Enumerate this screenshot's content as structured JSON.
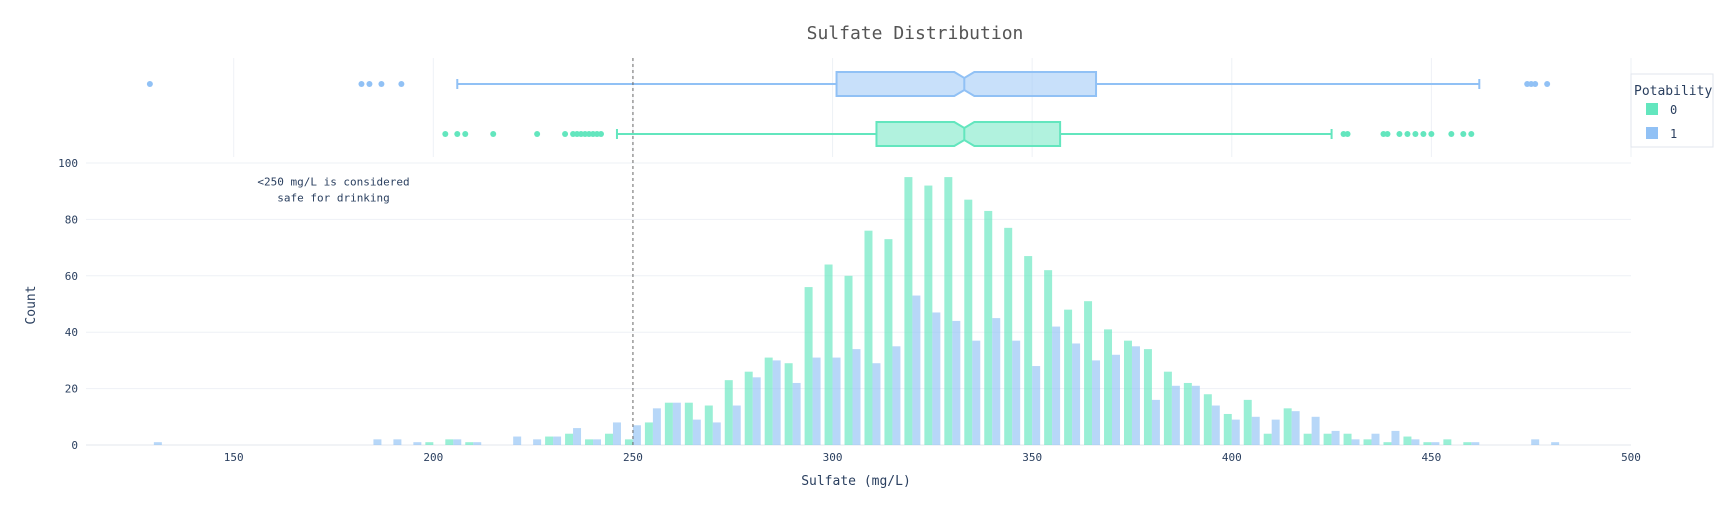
{
  "chart_data": {
    "type": "bar",
    "title": "Sulfate Distribution",
    "xlabel": "Sulfate (mg/L)",
    "ylabel": "Count",
    "xlim": [
      113,
      500
    ],
    "ylim": [
      0,
      100
    ],
    "x_ticks": [
      150,
      200,
      250,
      300,
      350,
      400,
      450,
      500
    ],
    "y_ticks": [
      0,
      20,
      40,
      60,
      80,
      100
    ],
    "grid": true,
    "legend_title": "Potability",
    "legend_position": "top-right",
    "bin_width": 5,
    "threshold_line": {
      "x": 250,
      "style": "dashed"
    },
    "annotation": {
      "lines": [
        "<250 mg/L is considered",
        "safe for drinking"
      ],
      "x": 175,
      "y": 92
    },
    "series": [
      {
        "name": "0",
        "color": "#63e6be",
        "bin_centers": [
          200,
          205,
          210,
          215,
          220,
          225,
          230,
          235,
          240,
          245,
          250,
          255,
          260,
          265,
          270,
          275,
          280,
          285,
          290,
          295,
          300,
          305,
          310,
          315,
          320,
          325,
          330,
          335,
          340,
          345,
          350,
          355,
          360,
          365,
          370,
          375,
          380,
          385,
          390,
          395,
          400,
          405,
          410,
          415,
          420,
          425,
          430,
          435,
          440,
          445,
          450,
          455,
          460,
          465,
          470,
          475,
          480
        ],
        "values": [
          1,
          2,
          1,
          0,
          0,
          0,
          3,
          4,
          2,
          4,
          2,
          8,
          15,
          15,
          14,
          23,
          26,
          31,
          29,
          56,
          64,
          60,
          76,
          73,
          95,
          92,
          95,
          87,
          83,
          77,
          67,
          62,
          48,
          51,
          41,
          37,
          34,
          26,
          22,
          18,
          11,
          16,
          4,
          13,
          4,
          4,
          4,
          2,
          1,
          3,
          1,
          2,
          1,
          0,
          0,
          0,
          0
        ],
        "box": {
          "min": 246,
          "q1": 311,
          "median": 333,
          "q3": 357,
          "max": 425,
          "outliers": [
            203,
            206,
            208,
            215,
            226,
            233,
            235,
            236,
            237,
            238,
            239,
            240,
            241,
            242,
            428,
            429,
            438,
            439,
            442,
            444,
            446,
            448,
            450,
            455,
            458,
            460
          ]
        }
      },
      {
        "name": "1",
        "color": "#91c1f5",
        "bin_centers": [
          130,
          135,
          140,
          145,
          150,
          155,
          160,
          165,
          170,
          175,
          180,
          185,
          190,
          195,
          200,
          205,
          210,
          215,
          220,
          225,
          230,
          235,
          240,
          245,
          250,
          255,
          260,
          265,
          270,
          275,
          280,
          285,
          290,
          295,
          300,
          305,
          310,
          315,
          320,
          325,
          330,
          335,
          340,
          345,
          350,
          355,
          360,
          365,
          370,
          375,
          380,
          385,
          390,
          395,
          400,
          405,
          410,
          415,
          420,
          425,
          430,
          435,
          440,
          445,
          450,
          455,
          460,
          465,
          470,
          475,
          480
        ],
        "values": [
          1,
          0,
          0,
          0,
          0,
          0,
          0,
          0,
          0,
          0,
          0,
          2,
          2,
          1,
          0,
          2,
          1,
          0,
          3,
          2,
          3,
          6,
          2,
          8,
          7,
          13,
          15,
          9,
          8,
          14,
          24,
          30,
          22,
          31,
          31,
          34,
          29,
          35,
          53,
          47,
          44,
          37,
          45,
          37,
          28,
          42,
          36,
          30,
          32,
          35,
          16,
          21,
          21,
          14,
          9,
          10,
          9,
          12,
          10,
          5,
          2,
          4,
          5,
          2,
          1,
          0,
          1,
          0,
          0,
          2,
          1
        ],
        "box": {
          "min": 206,
          "q1": 301,
          "median": 333,
          "q3": 366,
          "max": 462,
          "outliers": [
            129,
            182,
            184,
            187,
            192,
            474,
            475,
            476,
            479
          ]
        }
      }
    ]
  }
}
